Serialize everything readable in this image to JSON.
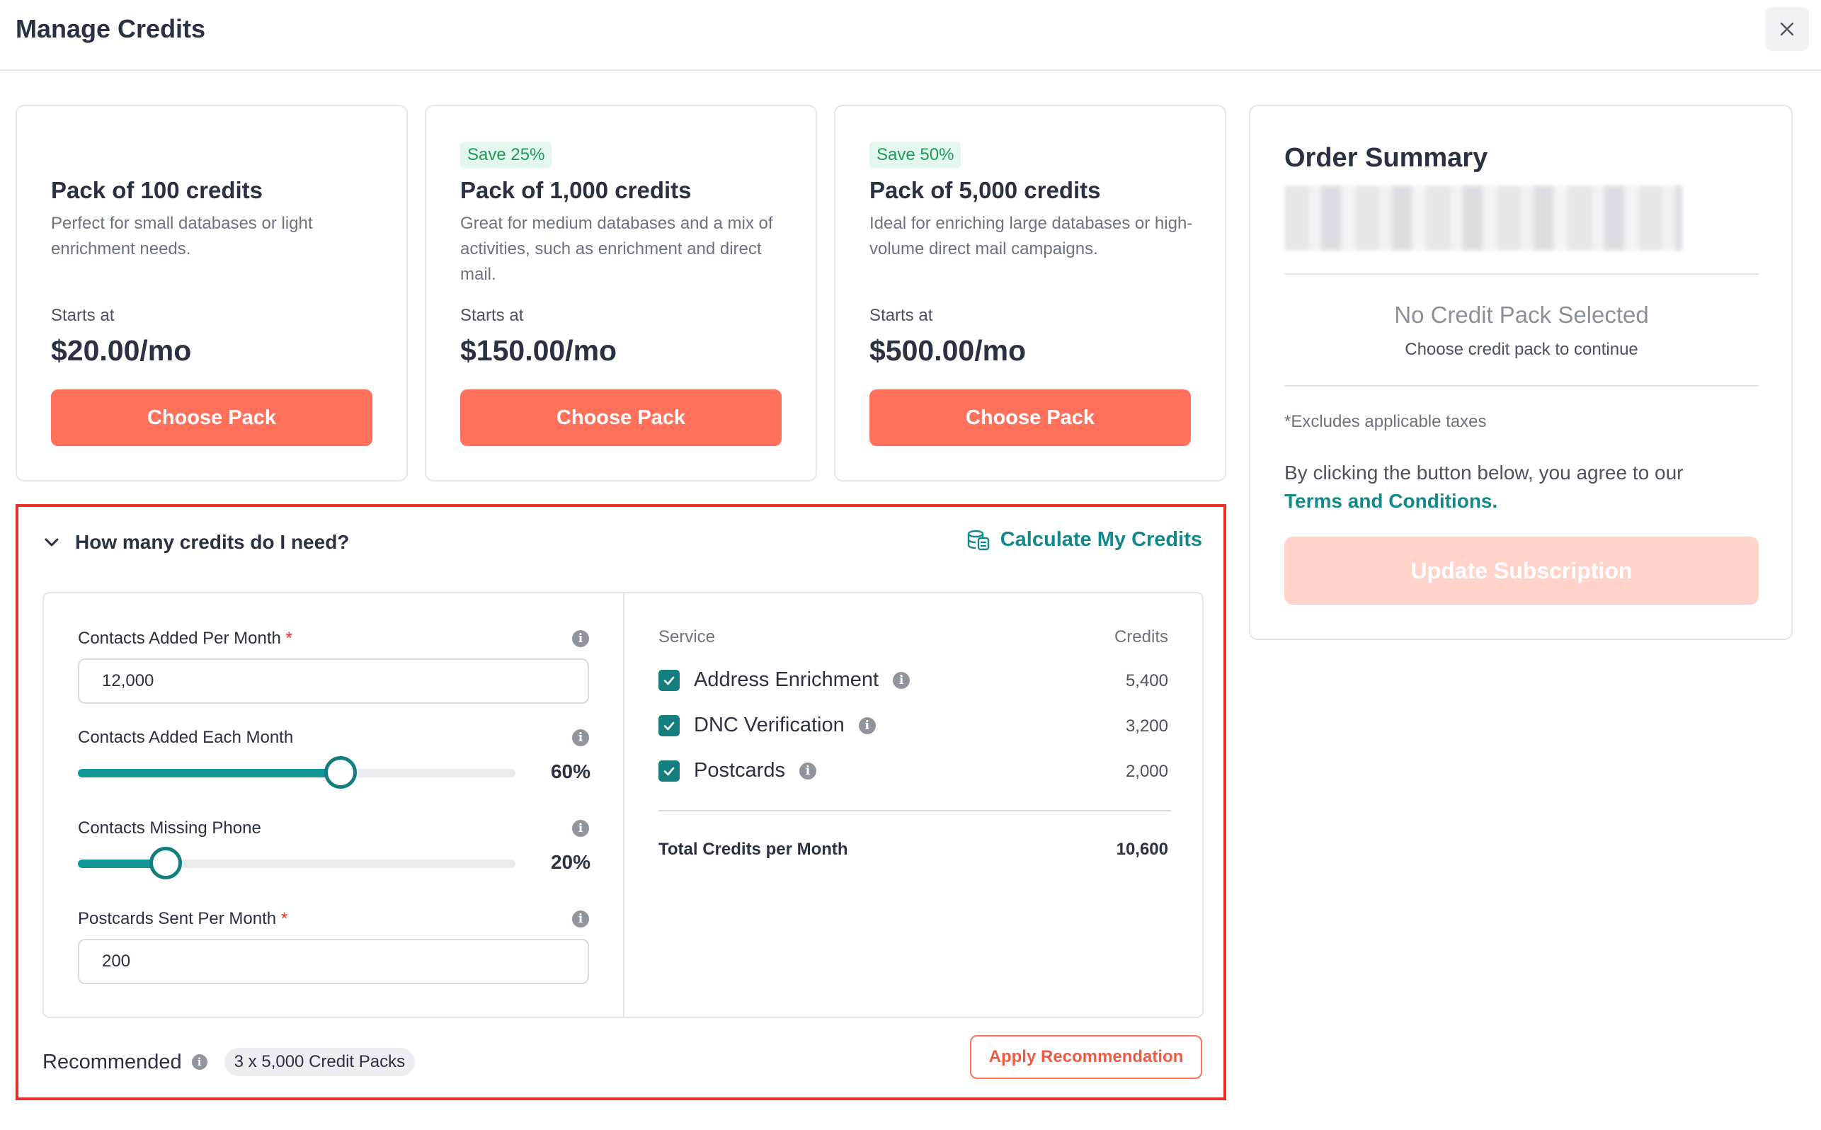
{
  "header": {
    "title": "Manage Credits",
    "close_icon": "close-icon"
  },
  "packs": [
    {
      "badge": "",
      "title": "Pack of 100 credits",
      "description": "Perfect for small databases or light enrichment needs.",
      "starts_label": "Starts at",
      "price": "$20.00/mo",
      "button": "Choose Pack"
    },
    {
      "badge": "Save 25%",
      "title": "Pack of 1,000 credits",
      "description": "Great for medium databases and a mix of activities, such as enrichment and direct mail.",
      "starts_label": "Starts at",
      "price": "$150.00/mo",
      "button": "Choose Pack"
    },
    {
      "badge": "Save 50%",
      "title": "Pack of 5,000 credits",
      "description": "Ideal for enriching large databases or high-volume direct mail campaigns.",
      "starts_label": "Starts at",
      "price": "$500.00/mo",
      "button": "Choose Pack"
    }
  ],
  "summary": {
    "title": "Order Summary",
    "empty_title": "No Credit Pack Selected",
    "empty_subtitle": "Choose credit pack to continue",
    "taxes_note": "*Excludes applicable taxes",
    "agree_text": "By clicking the button below, you agree to our",
    "terms_link": "Terms and Conditions.",
    "update_button": "Update Subscription"
  },
  "calculator": {
    "question": "How many credits do I need?",
    "calculate_link": "Calculate My Credits",
    "fields": {
      "contacts_added_per_month": {
        "label": "Contacts Added Per Month",
        "required": "*",
        "value": "12,000"
      },
      "contacts_added_each_month": {
        "label": "Contacts Added Each Month",
        "value": "60%",
        "fraction": 0.6
      },
      "contacts_missing_phone": {
        "label": "Contacts Missing Phone",
        "value": "20%",
        "fraction": 0.2
      },
      "postcards_sent_per_month": {
        "label": "Postcards Sent Per Month",
        "required": "*",
        "value": "200"
      }
    },
    "services_header": "Service",
    "credits_header": "Credits",
    "services": [
      {
        "name": "Address Enrichment",
        "credits": "5,400",
        "checked": true
      },
      {
        "name": "DNC Verification",
        "credits": "3,200",
        "checked": true
      },
      {
        "name": "Postcards",
        "credits": "2,000",
        "checked": true
      }
    ],
    "total_label": "Total Credits per Month",
    "total_value": "10,600",
    "recommended_label": "Recommended",
    "recommended_value": "3 x 5,000 Credit Packs",
    "apply_button": "Apply Recommendation"
  },
  "colors": {
    "accent": "#ff715b",
    "teal": "#13888a",
    "highlight_border": "#e5302a"
  }
}
